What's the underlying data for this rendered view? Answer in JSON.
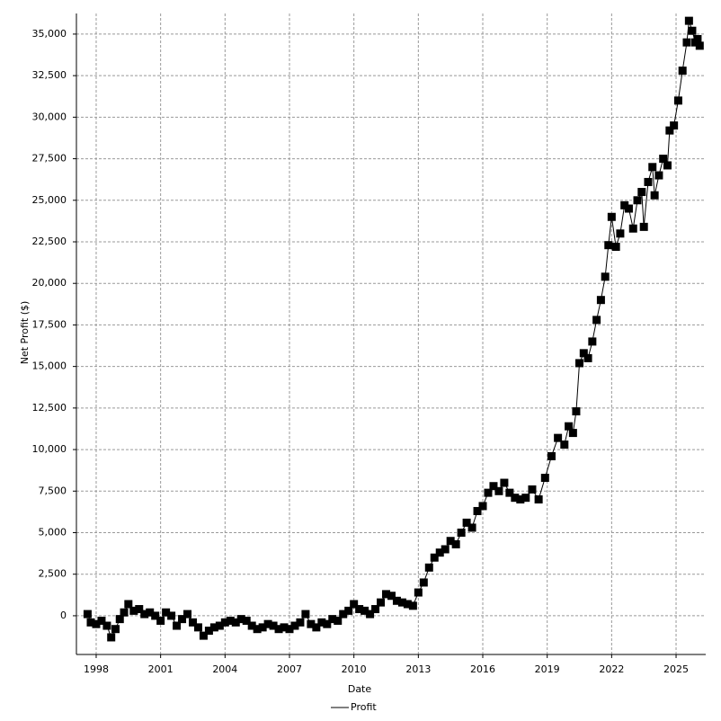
{
  "chart_data": {
    "type": "line",
    "x_label": "Date",
    "y_label": "Net Profit ($)",
    "x": [
      1997.6,
      1997.75,
      1998.0,
      1998.25,
      1998.5,
      1998.7,
      1998.9,
      1999.1,
      1999.3,
      1999.5,
      1999.75,
      2000.0,
      2000.25,
      2000.5,
      2000.75,
      2001.0,
      2001.25,
      2001.5,
      2001.75,
      2002.0,
      2002.25,
      2002.5,
      2002.75,
      2003.0,
      2003.25,
      2003.5,
      2003.75,
      2004.0,
      2004.25,
      2004.5,
      2004.75,
      2005.0,
      2005.25,
      2005.5,
      2005.75,
      2006.0,
      2006.25,
      2006.5,
      2006.75,
      2007.0,
      2007.25,
      2007.5,
      2007.75,
      2008.0,
      2008.25,
      2008.5,
      2008.75,
      2009.0,
      2009.25,
      2009.5,
      2009.75,
      2010.0,
      2010.25,
      2010.5,
      2010.75,
      2011.0,
      2011.25,
      2011.5,
      2011.75,
      2012.0,
      2012.25,
      2012.5,
      2012.75,
      2013.0,
      2013.25,
      2013.5,
      2013.75,
      2014.0,
      2014.25,
      2014.5,
      2014.75,
      2015.0,
      2015.25,
      2015.5,
      2015.75,
      2016.0,
      2016.25,
      2016.5,
      2016.75,
      2017.0,
      2017.25,
      2017.5,
      2017.75,
      2018.0,
      2018.3,
      2018.6,
      2018.9,
      2019.2,
      2019.5,
      2019.8,
      2020.0,
      2020.2,
      2020.35,
      2020.5,
      2020.7,
      2020.9,
      2021.1,
      2021.3,
      2021.5,
      2021.7,
      2021.85,
      2022.0,
      2022.2,
      2022.4,
      2022.6,
      2022.8,
      2023.0,
      2023.2,
      2023.4,
      2023.5,
      2023.7,
      2023.9,
      2024.0,
      2024.2,
      2024.4,
      2024.6,
      2024.7,
      2024.9,
      2025.1,
      2025.3,
      2025.5,
      2025.6,
      2025.75,
      2025.9,
      2026.0,
      2026.1
    ],
    "series": [
      {
        "name": "Profit",
        "color": "#000000",
        "values": [
          100,
          -400,
          -500,
          -300,
          -600,
          -1300,
          -800,
          -200,
          200,
          700,
          300,
          400,
          100,
          200,
          0,
          -300,
          200,
          0,
          -600,
          -200,
          100,
          -400,
          -700,
          -1200,
          -900,
          -700,
          -600,
          -400,
          -300,
          -400,
          -200,
          -300,
          -600,
          -800,
          -700,
          -500,
          -600,
          -800,
          -700,
          -800,
          -600,
          -400,
          100,
          -500,
          -700,
          -400,
          -500,
          -200,
          -300,
          100,
          300,
          700,
          400,
          300,
          100,
          400,
          800,
          1300,
          1200,
          900,
          800,
          700,
          600,
          1400,
          2000,
          2900,
          3500,
          3800,
          4000,
          4500,
          4300,
          5000,
          5600,
          5300,
          6300,
          6600,
          7400,
          7800,
          7500,
          8000,
          7400,
          7100,
          7000,
          7100,
          7600,
          7000,
          8300,
          9600,
          10700,
          10300,
          11400,
          11000,
          12300,
          15200,
          15800,
          15500,
          16500,
          17800,
          19000,
          20400,
          22300,
          24000,
          22200,
          23000,
          24700,
          24500,
          23300,
          25000,
          25500,
          23400,
          26100,
          27000,
          25300,
          26500,
          27500,
          27100,
          29200,
          29500,
          31000,
          32800,
          34500,
          35800,
          35200,
          34500,
          34700,
          34300
        ]
      }
    ],
    "xlim": [
      1997.08,
      2026.38
    ],
    "xticks": [
      1998,
      2001,
      2004,
      2007,
      2010,
      2013,
      2016,
      2019,
      2022,
      2025
    ],
    "ylim": [
      -2330,
      36240
    ],
    "yticks": [
      0,
      {
        "value": 2500,
        "label": "2,500"
      },
      {
        "value": 5000,
        "label": "5,000"
      },
      {
        "value": 7500,
        "label": "7,500"
      },
      {
        "value": 10000,
        "label": "10,000"
      },
      {
        "value": 12500,
        "label": "12,500"
      },
      {
        "value": 15000,
        "label": "15,000"
      },
      {
        "value": 17500,
        "label": "17,500"
      },
      {
        "value": 20000,
        "label": "20,000"
      },
      {
        "value": 22500,
        "label": "22,500"
      },
      {
        "value": 25000,
        "label": "25,000"
      },
      {
        "value": 27500,
        "label": "27,500"
      },
      {
        "value": 30000,
        "label": "30,000"
      },
      {
        "value": 32500,
        "label": "32,500"
      },
      {
        "value": 35000,
        "label": "35,000"
      }
    ],
    "grid": true,
    "legend": "bottom"
  }
}
